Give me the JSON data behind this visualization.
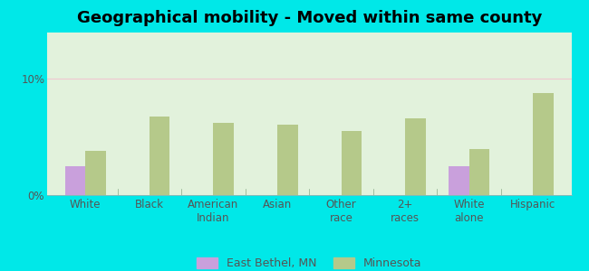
{
  "title": "Geographical mobility - Moved within same county",
  "categories": [
    "White",
    "Black",
    "American\nIndian",
    "Asian",
    "Other\nrace",
    "2+\nraces",
    "White\nalone",
    "Hispanic"
  ],
  "east_bethel": [
    2.5,
    0,
    0,
    0,
    0,
    0,
    2.5,
    0
  ],
  "minnesota": [
    3.8,
    6.8,
    6.2,
    6.1,
    5.5,
    6.6,
    4.0,
    8.8
  ],
  "bar_color_eb": "#c9a0dc",
  "bar_color_mn": "#b5c98a",
  "background_color": "#00e8e8",
  "ylim": [
    0,
    14
  ],
  "ytick_labels": [
    "0%",
    "10%"
  ],
  "ytick_vals": [
    0,
    10
  ],
  "legend_eb": "East Bethel, MN",
  "legend_mn": "Minnesota",
  "bar_width": 0.32,
  "title_fontsize": 13,
  "tick_fontsize": 8.5,
  "legend_fontsize": 9,
  "grid_color": "#e0ece0",
  "divider_color": "#aaccaa",
  "plot_bg_color_top": "#f0faf0",
  "plot_bg_color_bottom": "#d0eecc"
}
